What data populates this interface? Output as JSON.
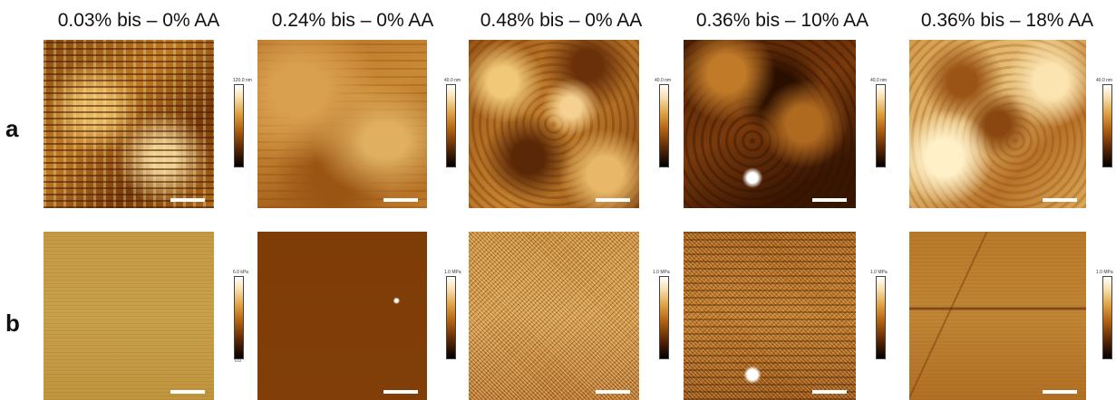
{
  "columns": [
    {
      "title": "0.03% bis – 0% AA"
    },
    {
      "title": "0.24% bis – 0% AA"
    },
    {
      "title": "0.48% bis – 0% AA"
    },
    {
      "title": "0.36% bis – 10% AA"
    },
    {
      "title": "0.36% bis – 18% AA"
    }
  ],
  "rows": [
    {
      "label": "a"
    },
    {
      "label": "b"
    }
  ],
  "colorbars": {
    "a": [
      "120.0 nm",
      "40.0 nm",
      "40.0 nm",
      "40.0 nm",
      "40.0 nm"
    ],
    "b": [
      "6.0 kPa",
      "1.0 MPa",
      "1.0 MPa",
      "1.0 MPa",
      "1.0 MPa"
    ],
    "b_bottom": [
      "0.0",
      "",
      "",
      "",
      ""
    ]
  },
  "colors": {
    "brown_dark": "#4a1e02",
    "brown_mid": "#a05a15",
    "gold": "#d9a040",
    "light": "#f5dba0"
  }
}
